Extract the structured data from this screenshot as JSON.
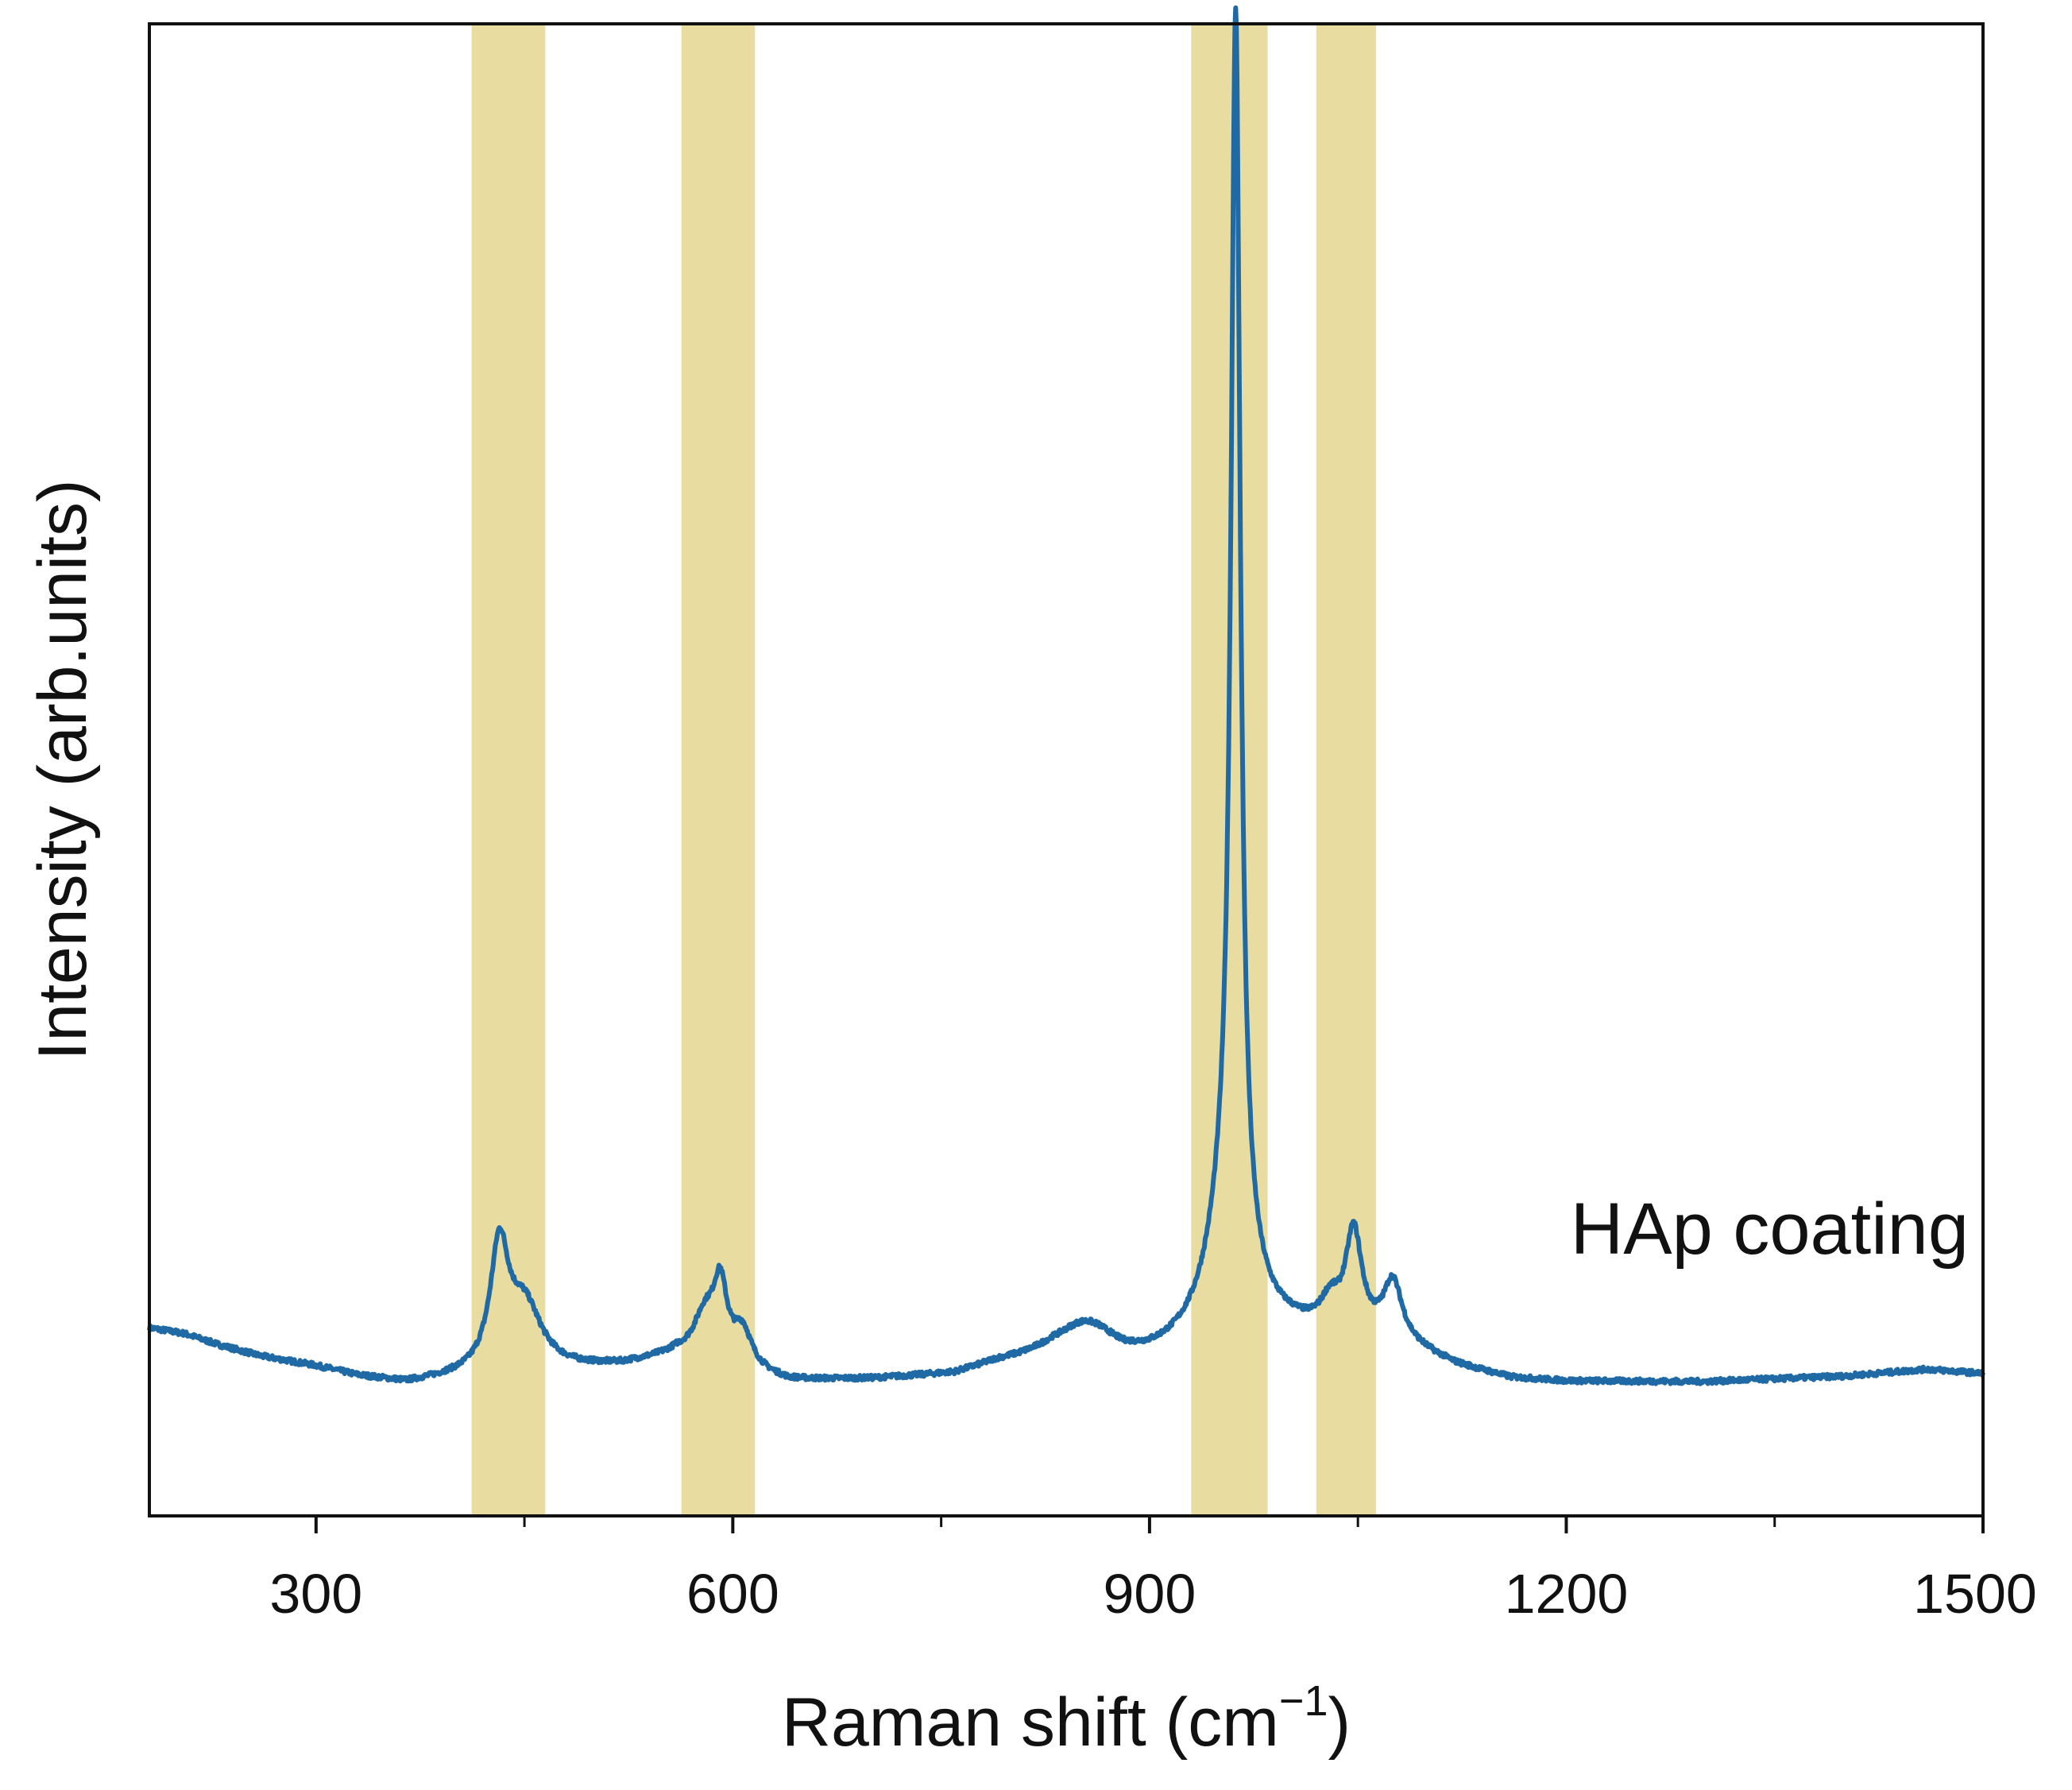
{
  "chart_data": {
    "type": "line",
    "title": "",
    "xlabel": "Raman shift (cm",
    "xlabel_superscript": "−1",
    "xlabel_close": ")",
    "ylabel": "Intensity (arb.units)",
    "xlim": [
      180,
      1500
    ],
    "ylim": [
      0,
      10.5
    ],
    "x_ticks": [
      300,
      600,
      900,
      1200,
      1500
    ],
    "x_minor_ticks": [
      450,
      750,
      1050,
      1350
    ],
    "y_ticks_visible": false,
    "grid": false,
    "annotation": "HAp coating",
    "highlight_bands": [
      {
        "x0": 412,
        "x1": 465
      },
      {
        "x0": 563,
        "x1": 616
      },
      {
        "x0": 930,
        "x1": 985
      },
      {
        "x0": 1020,
        "x1": 1063
      }
    ],
    "series": [
      {
        "color": "#1f6aa5",
        "baseline": [
          [
            180,
            1.32
          ],
          [
            205,
            1.28
          ],
          [
            230,
            1.2
          ],
          [
            260,
            1.12
          ],
          [
            300,
            1.05
          ],
          [
            330,
            0.98
          ],
          [
            365,
            0.93
          ],
          [
            395,
            0.96
          ],
          [
            520,
            1.05
          ],
          [
            560,
            1.12
          ],
          [
            640,
            0.94
          ],
          [
            700,
            0.95
          ],
          [
            760,
            0.98
          ],
          [
            790,
            1.05
          ],
          [
            830,
            1.08
          ],
          [
            880,
            1.02
          ],
          [
            900,
            1.05
          ],
          [
            960,
            1.2
          ],
          [
            1000,
            1.25
          ],
          [
            1040,
            1.25
          ],
          [
            1080,
            1.2
          ],
          [
            1120,
            1.05
          ],
          [
            1160,
            0.96
          ],
          [
            1200,
            0.94
          ],
          [
            1300,
            0.94
          ],
          [
            1400,
            0.98
          ],
          [
            1460,
            1.03
          ],
          [
            1500,
            1.0
          ]
        ],
        "peaks": [
          {
            "center": 432,
            "height": 0.85,
            "width": 8
          },
          {
            "center": 450,
            "height": 0.45,
            "width": 15
          },
          {
            "center": 580,
            "height": 0.3,
            "width": 10
          },
          {
            "center": 591,
            "height": 0.5,
            "width": 6
          },
          {
            "center": 607,
            "height": 0.25,
            "width": 8
          },
          {
            "center": 855,
            "height": 0.28,
            "width": 28
          },
          {
            "center": 962,
            "height": 8.55,
            "width": 4
          },
          {
            "center": 957,
            "height": 0.9,
            "width": 18
          },
          {
            "center": 1030,
            "height": 0.18,
            "width": 8
          },
          {
            "center": 1047,
            "height": 0.7,
            "width": 7
          },
          {
            "center": 1075,
            "height": 0.4,
            "width": 8
          }
        ]
      }
    ],
    "colors": {
      "line": "#1f6aa5",
      "band": "#e8dca0",
      "axis": "#111111"
    }
  }
}
